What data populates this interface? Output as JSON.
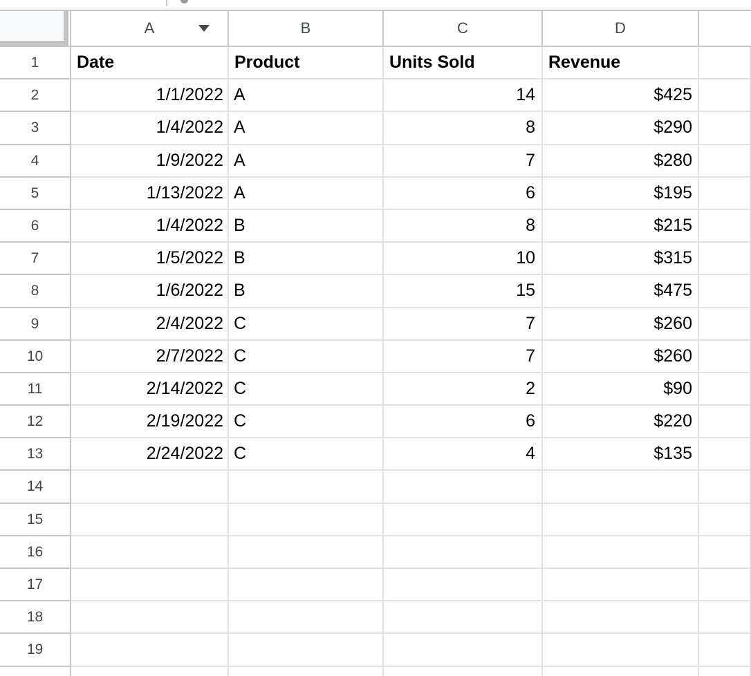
{
  "sheet": {
    "column_headers": [
      "A",
      "B",
      "C",
      "D"
    ],
    "visible_row_numbers": [
      "1",
      "2",
      "3",
      "4",
      "5",
      "6",
      "7",
      "8",
      "9",
      "10",
      "11",
      "12",
      "13",
      "14",
      "15",
      "16",
      "17",
      "18",
      "19"
    ],
    "column_a_dropdown": "filter-dropdown",
    "table": {
      "headers": [
        "Date",
        "Product",
        "Units Sold",
        "Revenue"
      ],
      "rows": [
        [
          "1/1/2022",
          "A",
          "14",
          "$425"
        ],
        [
          "1/4/2022",
          "A",
          "8",
          "$290"
        ],
        [
          "1/9/2022",
          "A",
          "7",
          "$280"
        ],
        [
          "1/13/2022",
          "A",
          "6",
          "$195"
        ],
        [
          "1/4/2022",
          "B",
          "8",
          "$215"
        ],
        [
          "1/5/2022",
          "B",
          "10",
          "$315"
        ],
        [
          "1/6/2022",
          "B",
          "15",
          "$475"
        ],
        [
          "2/4/2022",
          "C",
          "7",
          "$260"
        ],
        [
          "2/7/2022",
          "C",
          "7",
          "$260"
        ],
        [
          "2/14/2022",
          "C",
          "2",
          "$90"
        ],
        [
          "2/19/2022",
          "C",
          "6",
          "$220"
        ],
        [
          "2/24/2022",
          "C",
          "4",
          "$135"
        ]
      ]
    },
    "colors": {
      "grid_line": "#e2e2e2",
      "chrome_line": "#c6c6c6",
      "header_text": "#45474a",
      "cell_text": "#000000",
      "corner_fill": "#f8f9fa"
    }
  }
}
